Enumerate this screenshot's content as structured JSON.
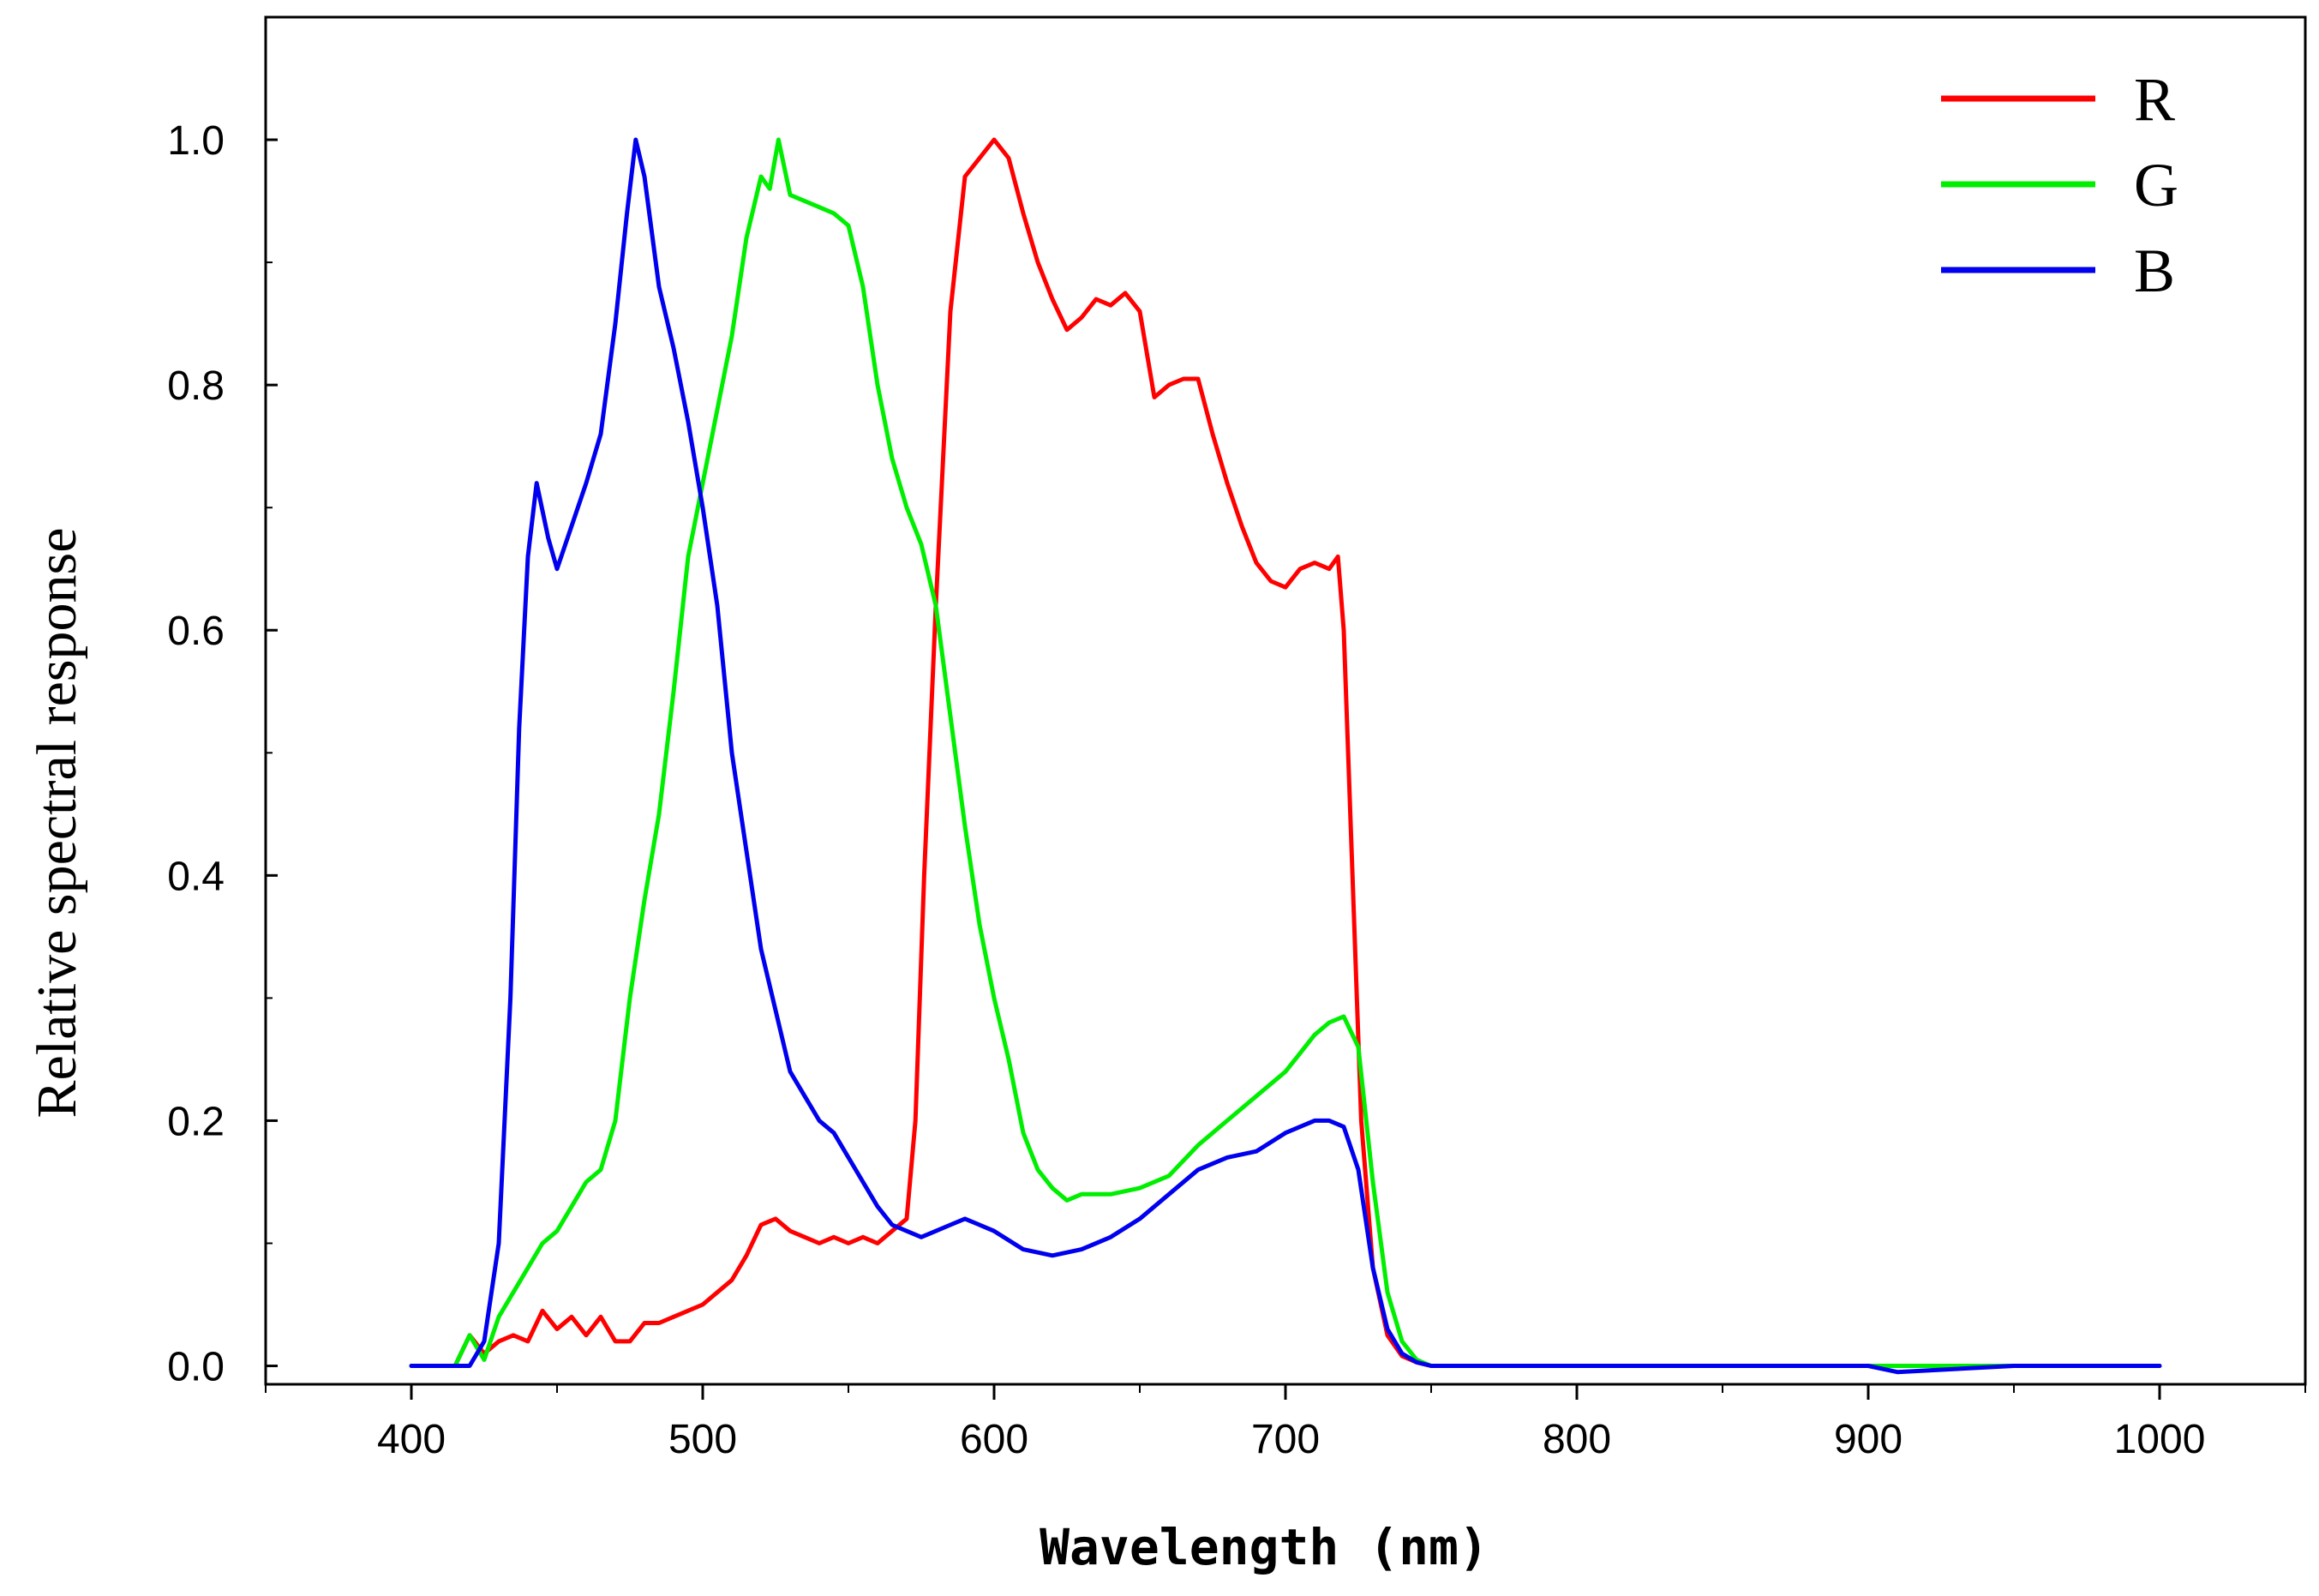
{
  "chart_data": {
    "type": "line",
    "title": "",
    "xlabel": "Wavelength (nm)",
    "ylabel": "Relative spectral response",
    "xlim": [
      350,
      1050
    ],
    "ylim": [
      -0.015,
      1.1
    ],
    "xticks": [
      400,
      500,
      600,
      700,
      800,
      900,
      1000
    ],
    "xtick_labels": [
      "400",
      "500",
      "600",
      "700",
      "800",
      "900",
      "1000"
    ],
    "yticks": [
      0.0,
      0.2,
      0.4,
      0.6,
      0.8,
      1.0
    ],
    "ytick_labels": [
      "0.0",
      "0.2",
      "0.4",
      "0.6",
      "0.8",
      "1.0"
    ],
    "grid": false,
    "legend_position": "top-right",
    "series": [
      {
        "name": "R",
        "color": "#ff0000",
        "x": [
          400,
          415,
          420,
          425,
          430,
          435,
          440,
          445,
          450,
          455,
          460,
          465,
          470,
          475,
          480,
          485,
          490,
          495,
          500,
          505,
          510,
          515,
          520,
          525,
          530,
          535,
          540,
          545,
          550,
          555,
          560,
          565,
          570,
          573,
          576,
          580,
          585,
          590,
          595,
          600,
          605,
          610,
          615,
          620,
          625,
          630,
          635,
          640,
          645,
          650,
          655,
          660,
          665,
          670,
          675,
          680,
          685,
          690,
          695,
          700,
          705,
          710,
          715,
          718,
          720,
          723,
          726,
          730,
          735,
          740,
          745,
          750,
          760,
          800,
          850,
          900,
          950,
          1000
        ],
        "y": [
          0.0,
          0.0,
          0.025,
          0.01,
          0.02,
          0.025,
          0.02,
          0.045,
          0.03,
          0.04,
          0.025,
          0.04,
          0.02,
          0.02,
          0.035,
          0.035,
          0.04,
          0.045,
          0.05,
          0.06,
          0.07,
          0.09,
          0.115,
          0.12,
          0.11,
          0.105,
          0.1,
          0.105,
          0.1,
          0.105,
          0.1,
          0.11,
          0.12,
          0.2,
          0.4,
          0.62,
          0.86,
          0.97,
          0.985,
          1.0,
          0.985,
          0.94,
          0.9,
          0.87,
          0.845,
          0.855,
          0.87,
          0.865,
          0.875,
          0.86,
          0.79,
          0.8,
          0.805,
          0.805,
          0.76,
          0.72,
          0.685,
          0.655,
          0.64,
          0.635,
          0.65,
          0.655,
          0.65,
          0.66,
          0.6,
          0.4,
          0.2,
          0.08,
          0.025,
          0.008,
          0.003,
          0.0,
          0.0,
          0.0,
          0.0,
          0.0,
          0.0,
          0.0
        ]
      },
      {
        "name": "G",
        "color": "#00ee00",
        "x": [
          400,
          415,
          420,
          425,
          430,
          435,
          440,
          445,
          450,
          455,
          460,
          465,
          470,
          475,
          480,
          485,
          490,
          495,
          500,
          505,
          510,
          515,
          520,
          523,
          526,
          530,
          535,
          540,
          545,
          550,
          555,
          560,
          565,
          570,
          575,
          580,
          585,
          590,
          595,
          600,
          605,
          610,
          615,
          620,
          625,
          630,
          640,
          650,
          660,
          670,
          680,
          690,
          700,
          705,
          710,
          715,
          720,
          725,
          730,
          735,
          740,
          745,
          750,
          760,
          800,
          850,
          900,
          950,
          1000
        ],
        "y": [
          0.0,
          0.0,
          0.025,
          0.005,
          0.04,
          0.06,
          0.08,
          0.1,
          0.11,
          0.13,
          0.15,
          0.16,
          0.2,
          0.3,
          0.38,
          0.45,
          0.55,
          0.66,
          0.72,
          0.78,
          0.84,
          0.92,
          0.97,
          0.96,
          1.0,
          0.955,
          0.95,
          0.945,
          0.94,
          0.93,
          0.88,
          0.8,
          0.74,
          0.7,
          0.67,
          0.62,
          0.53,
          0.44,
          0.36,
          0.3,
          0.25,
          0.19,
          0.16,
          0.145,
          0.135,
          0.14,
          0.14,
          0.145,
          0.155,
          0.18,
          0.2,
          0.22,
          0.24,
          0.255,
          0.27,
          0.28,
          0.285,
          0.26,
          0.15,
          0.06,
          0.02,
          0.005,
          0.0,
          0.0,
          0.0,
          0.0,
          0.0,
          0.0,
          0.0
        ]
      },
      {
        "name": "B",
        "color": "#0000ee",
        "x": [
          400,
          420,
          425,
          430,
          434,
          437,
          440,
          443,
          447,
          450,
          455,
          460,
          465,
          470,
          474,
          477,
          480,
          485,
          490,
          495,
          500,
          505,
          510,
          515,
          520,
          525,
          530,
          535,
          540,
          545,
          550,
          555,
          560,
          565,
          570,
          575,
          580,
          585,
          590,
          595,
          600,
          610,
          620,
          630,
          640,
          650,
          660,
          670,
          680,
          690,
          700,
          705,
          710,
          715,
          720,
          725,
          730,
          735,
          740,
          745,
          750,
          760,
          800,
          850,
          900,
          910,
          950,
          1000
        ],
        "y": [
          0.0,
          0.0,
          0.02,
          0.1,
          0.3,
          0.52,
          0.66,
          0.72,
          0.675,
          0.65,
          0.685,
          0.72,
          0.76,
          0.85,
          0.94,
          1.0,
          0.97,
          0.88,
          0.83,
          0.77,
          0.7,
          0.62,
          0.5,
          0.42,
          0.34,
          0.29,
          0.24,
          0.22,
          0.2,
          0.19,
          0.17,
          0.15,
          0.13,
          0.115,
          0.11,
          0.105,
          0.11,
          0.115,
          0.12,
          0.115,
          0.11,
          0.095,
          0.09,
          0.095,
          0.105,
          0.12,
          0.14,
          0.16,
          0.17,
          0.175,
          0.19,
          0.195,
          0.2,
          0.2,
          0.195,
          0.16,
          0.08,
          0.03,
          0.01,
          0.003,
          0.0,
          0.0,
          0.0,
          0.0,
          0.0,
          -0.005,
          0.0,
          0.0
        ]
      }
    ]
  }
}
